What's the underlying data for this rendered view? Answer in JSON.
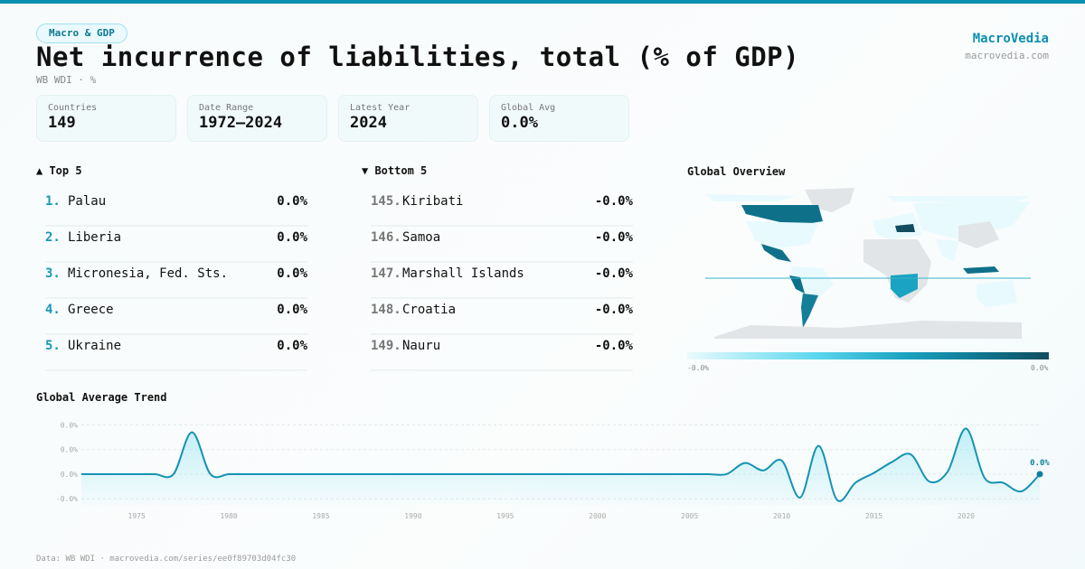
{
  "badge": "Macro & GDP",
  "title": "Net incurrence of liabilities, total (% of GDP)",
  "subtitle": "WB WDI · %",
  "brand": {
    "name": "MacroVedia",
    "url": "macrovedia.com"
  },
  "cards": [
    {
      "label": "Countries",
      "value": "149"
    },
    {
      "label": "Date Range",
      "value": "1972–2024"
    },
    {
      "label": "Latest Year",
      "value": "2024"
    },
    {
      "label": "Global Avg",
      "value": "0.0%"
    }
  ],
  "top": {
    "heading": "▲ Top 5",
    "items": [
      {
        "rank": "1.",
        "name": "Palau",
        "value": "0.0%"
      },
      {
        "rank": "2.",
        "name": "Liberia",
        "value": "0.0%"
      },
      {
        "rank": "3.",
        "name": "Micronesia, Fed. Sts.",
        "value": "0.0%"
      },
      {
        "rank": "4.",
        "name": "Greece",
        "value": "0.0%"
      },
      {
        "rank": "5.",
        "name": "Ukraine",
        "value": "0.0%"
      }
    ]
  },
  "bottom": {
    "heading": "▼ Bottom 5",
    "items": [
      {
        "rank": "145.",
        "name": "Kiribati",
        "value": "-0.0%"
      },
      {
        "rank": "146.",
        "name": "Samoa",
        "value": "-0.0%"
      },
      {
        "rank": "147.",
        "name": "Marshall Islands",
        "value": "-0.0%"
      },
      {
        "rank": "148.",
        "name": "Croatia",
        "value": "-0.0%"
      },
      {
        "rank": "149.",
        "name": "Nauru",
        "value": "-0.0%"
      }
    ]
  },
  "map": {
    "heading": "Global Overview",
    "legend_min": "-0.0%",
    "legend_max": "0.0%"
  },
  "colors": {
    "accent": "#0a8fb0",
    "line": "#1593b3"
  },
  "chart_data": {
    "type": "area",
    "title": "Global Average Trend",
    "xlabel": "",
    "ylabel": "",
    "x": [
      1972,
      1973,
      1974,
      1975,
      1976,
      1977,
      1978,
      1979,
      1980,
      1981,
      1982,
      1983,
      1984,
      1985,
      1986,
      1987,
      1988,
      1989,
      1990,
      1991,
      1992,
      1993,
      1994,
      1995,
      1996,
      1997,
      1998,
      1999,
      2000,
      2001,
      2002,
      2003,
      2004,
      2005,
      2006,
      2007,
      2008,
      2009,
      2010,
      2011,
      2012,
      2013,
      2014,
      2015,
      2016,
      2017,
      2018,
      2019,
      2020,
      2021,
      2022,
      2023,
      2024
    ],
    "values": [
      0,
      0,
      0,
      0,
      0,
      0,
      0.017,
      0,
      0,
      0,
      0,
      0,
      0,
      0,
      0,
      0,
      0,
      0,
      0,
      0,
      0,
      0,
      0,
      0,
      0,
      0,
      0,
      0,
      0,
      0,
      0,
      0,
      0,
      0,
      0,
      0,
      0.0045,
      0.0015,
      0.0055,
      -0.0095,
      0.0115,
      -0.0105,
      -0.0035,
      0.0005,
      0.005,
      0.008,
      -0.003,
      0.001,
      0.0185,
      -0.0015,
      -0.0035,
      -0.007,
      0
    ],
    "ylim": [
      -0.0125,
      0.022
    ],
    "yticks": [
      0.02,
      0.01,
      0,
      -0.01
    ],
    "ytick_labels": [
      "0.0%",
      "0.0%",
      "0.0%",
      "-0.0%"
    ],
    "xticks": [
      "1975",
      "1980",
      "1985",
      "1990",
      "1995",
      "2000",
      "2005",
      "2010",
      "2015",
      "2020"
    ],
    "last_label": "0.0%",
    "grid": true
  },
  "footer": "Data: WB WDI · macrovedia.com/series/ee0f89703d04fc30"
}
